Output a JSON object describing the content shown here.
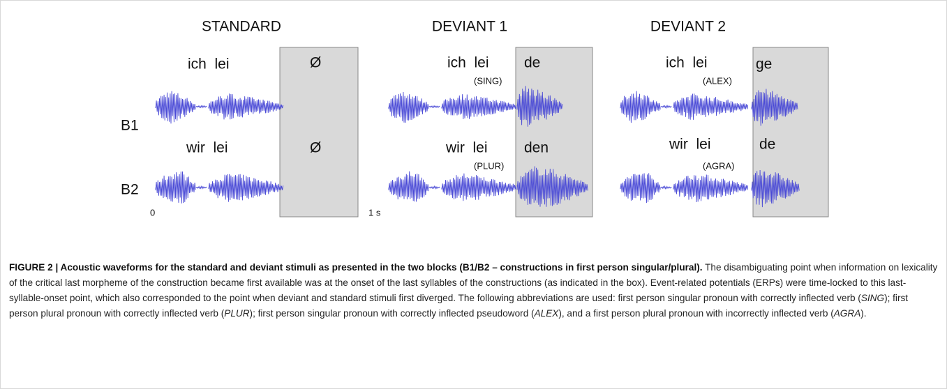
{
  "figure": {
    "headers": [
      "STANDARD",
      "DEVIANT 1",
      "DEVIANT 2"
    ],
    "rows": [
      "B1",
      "B2"
    ],
    "standard": {
      "b1_first": "ich  lei",
      "b1_last": "Ø",
      "b2_first": "wir  lei",
      "b2_last": "Ø"
    },
    "deviant1": {
      "b1_first": "ich  lei",
      "b1_tag": "(SING)",
      "b1_last": "de",
      "b2_first": "wir  lei",
      "b2_tag": "(PLUR)",
      "b2_last": "den"
    },
    "deviant2": {
      "b1_first": "ich  lei",
      "b1_tag": "(ALEX)",
      "b1_last": "ge",
      "b2_first": "wir  lei",
      "b2_tag": "(AGRA)",
      "b2_last": "de"
    },
    "scale": {
      "start": "0",
      "end": "1 s"
    }
  },
  "caption": {
    "bold": "FIGURE 2 | Acoustic waveforms for the standard and deviant stimuli as presented in the two blocks (B1/B2 – constructions in first person singular/plural).",
    "runs": [
      " The disambiguating point when information on lexicality of the critical last morpheme of the construction became first available was at the onset of the last syllables of the constructions (as indicated in the box). Event-related potentials (ERPs) were time-locked to this last-syllable-onset point, which also corresponded to the point when deviant and standard stimuli first diverged. The following abbreviations are used: first person singular pronoun with correctly inflected verb (",
      "SING",
      "); first person plural pronoun with correctly inflected verb (",
      "PLUR",
      "); first person singular pronoun with correctly inflected pseudoword (",
      "ALEX",
      "), and a first person plural pronoun with incorrectly inflected verb (",
      "AGRA",
      ")."
    ]
  }
}
